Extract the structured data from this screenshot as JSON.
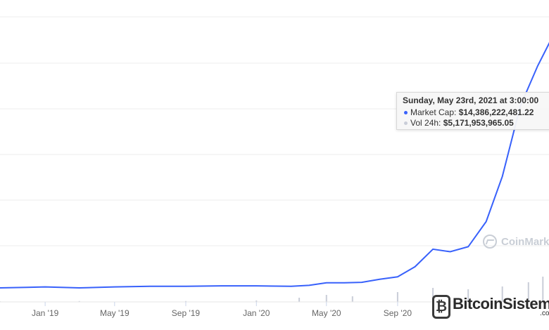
{
  "chart_data": {
    "type": "line",
    "title": "",
    "xlabel": "",
    "ylabel": "",
    "x_ticks": [
      "Jan '19",
      "May '19",
      "Sep '19",
      "Jan '20",
      "May '20",
      "Sep '20"
    ],
    "series": [
      {
        "name": "Market Cap",
        "color": "#3861fb",
        "x": [
          "2018-10-15",
          "2018-12-01",
          "2019-01-01",
          "2019-03-01",
          "2019-05-01",
          "2019-07-01",
          "2019-09-01",
          "2019-11-01",
          "2020-01-01",
          "2020-03-01",
          "2020-04-01",
          "2020-05-01",
          "2020-06-01",
          "2020-07-01",
          "2020-08-01",
          "2020-09-01",
          "2020-10-01",
          "2020-11-01",
          "2020-12-01",
          "2021-01-01",
          "2021-02-01",
          "2021-03-01",
          "2021-04-01",
          "2021-05-01",
          "2021-05-23"
        ],
        "values": [
          0.28,
          0.29,
          0.3,
          0.28,
          0.3,
          0.31,
          0.31,
          0.32,
          0.32,
          0.31,
          0.33,
          0.38,
          0.38,
          0.39,
          0.45,
          0.5,
          0.7,
          1.05,
          1.0,
          1.1,
          1.6,
          2.5,
          3.9,
          4.7,
          5.2
        ]
      },
      {
        "name": "Vol 24h",
        "color": "#c9cdd8",
        "type": "bar",
        "x": [
          "2018-10-15",
          "2019-03-01",
          "2019-09-01",
          "2020-01-01",
          "2020-03-15",
          "2020-05-01",
          "2020-06-15",
          "2020-09-01",
          "2020-11-01",
          "2021-01-01",
          "2021-03-01",
          "2021-04-15",
          "2021-05-10",
          "2021-05-23"
        ],
        "values": [
          0.02,
          0.03,
          0.03,
          0.05,
          0.15,
          0.25,
          0.2,
          0.35,
          0.5,
          0.45,
          0.55,
          0.7,
          0.9,
          0.6
        ]
      }
    ],
    "grid": true,
    "legend": "none"
  },
  "tooltip": {
    "title": "Sunday, May 23rd, 2021 at 3:00:00",
    "market_cap_label": "Market Cap:",
    "market_cap_value": "$14,386,222,481.22",
    "volume_label": "Vol 24h:",
    "volume_value": "$5,171,953,965.05",
    "market_cap_color": "#3861fb",
    "volume_color": "#c9cdd8"
  },
  "watermarks": {
    "coinmarketcap": "CoinMark",
    "bitcoinsistemi": "BitcoinSistemi",
    "bitcoinsistemi_sub": ".com"
  }
}
